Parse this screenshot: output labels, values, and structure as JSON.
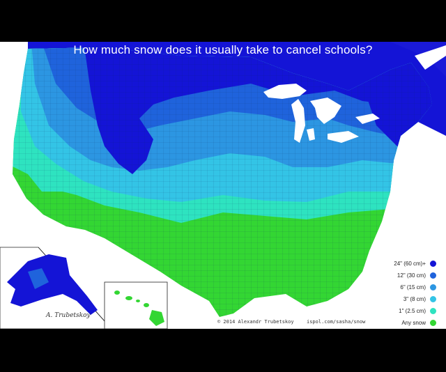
{
  "map": {
    "title": "How much snow does it usually take to cancel schools?",
    "credit_left": "© 2014 Alexandr Trubetskoy",
    "credit_right": "ispol.com/sasha/snow",
    "signature": "A. Trubetskoy",
    "regions_shown": [
      "Contiguous United States",
      "Alaska",
      "Hawaii",
      "Great Lakes",
      "Canada (south)"
    ]
  },
  "legend": {
    "items": [
      {
        "label": "24\" (60 cm)+",
        "color": "#1414d6"
      },
      {
        "label": "12\" (30 cm)",
        "color": "#1f63dc"
      },
      {
        "label": "6\" (15 cm)",
        "color": "#2c96e2"
      },
      {
        "label": "3\" (8 cm)",
        "color": "#33c4e6"
      },
      {
        "label": "1\" (2.5 cm)",
        "color": "#2ee3c0"
      },
      {
        "label": "Any snow",
        "color": "#33d633"
      }
    ]
  }
}
